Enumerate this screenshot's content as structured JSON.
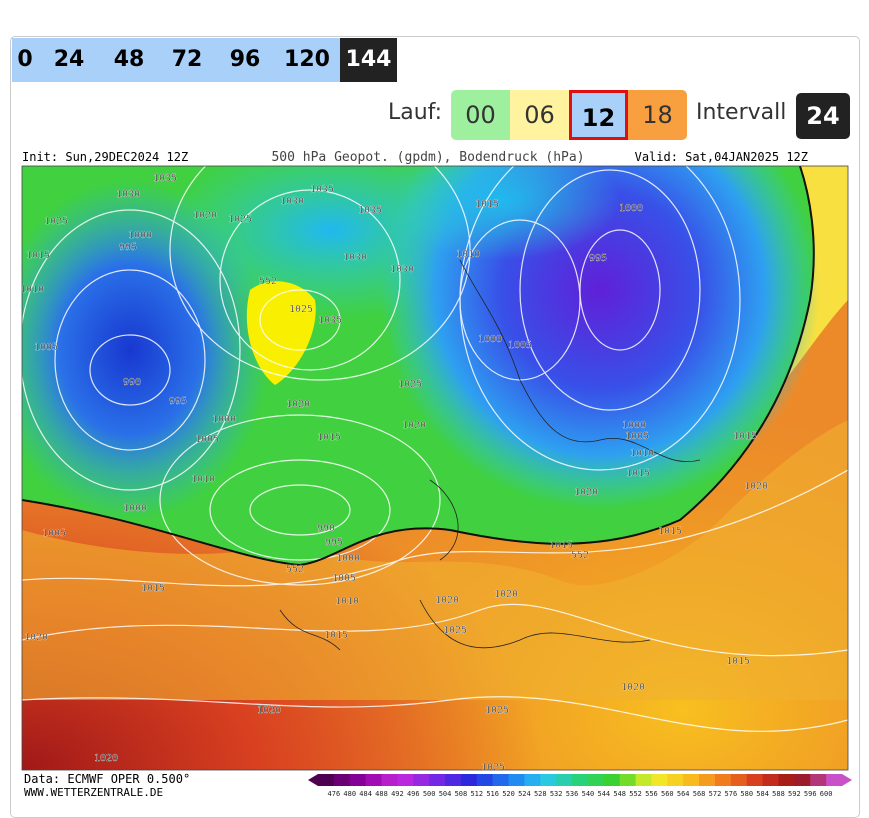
{
  "hours": {
    "items": [
      "0",
      "24",
      "48",
      "72",
      "96",
      "120",
      "144"
    ],
    "active": "144"
  },
  "run": {
    "label": "Lauf:",
    "items": [
      "00",
      "06",
      "12",
      "18"
    ],
    "selected": "12"
  },
  "interval": {
    "label": "Intervall",
    "value": "24"
  },
  "map": {
    "init": "Init: Sun,29DEC2024 12Z",
    "title": "500 hPa Geopot. (gpdm), Bodendruck (hPa)",
    "valid": "Valid: Sat,04JAN2025 12Z",
    "contour_labels": [
      "1035",
      "1030",
      "1025",
      "1020",
      "1025",
      "1030",
      "1035",
      "1035",
      "1000",
      "995",
      "1015",
      "1010",
      "1005",
      "990",
      "995",
      "1000",
      "1005",
      "1010",
      "1000",
      "1005",
      "990",
      "995",
      "1000",
      "1005",
      "1010",
      "1015",
      "1015",
      "1020",
      "1020",
      "1020",
      "552",
      "1025",
      "1035",
      "1030",
      "1030",
      "1025",
      "1020",
      "1015",
      "1020",
      "1015",
      "1010",
      "1000",
      "1005",
      "995",
      "1000",
      "1000",
      "1005",
      "1010",
      "1015",
      "1020",
      "1015",
      "1020",
      "1015",
      "1015",
      "552",
      "552",
      "1020",
      "1020",
      "1025",
      "1025",
      "1025",
      "1020",
      "1015"
    ]
  },
  "footer": {
    "source": "Data: ECMWF OPER 0.500°",
    "site": "WWW.WETTERZENTRALE.DE"
  },
  "colorbar": {
    "labels": [
      "476",
      "480",
      "484",
      "488",
      "492",
      "496",
      "500",
      "504",
      "508",
      "512",
      "516",
      "520",
      "524",
      "528",
      "532",
      "536",
      "540",
      "544",
      "548",
      "552",
      "556",
      "560",
      "564",
      "568",
      "572",
      "576",
      "580",
      "584",
      "588",
      "592",
      "596",
      "600"
    ]
  }
}
